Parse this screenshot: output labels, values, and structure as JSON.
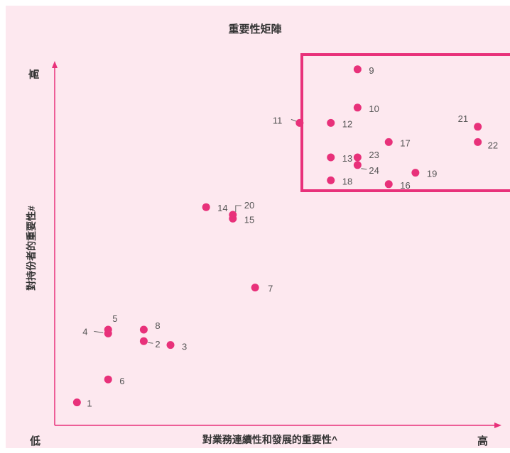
{
  "chart_data": {
    "type": "scatter",
    "title": "重要性矩陣",
    "xlabel": "對業務連續性和發展的重要性^",
    "ylabel": "對持份者的重要性#",
    "x_low_label": "低",
    "x_high_label": "高",
    "y_high_label": "高",
    "xlim": [
      0,
      100
    ],
    "ylim": [
      0,
      100
    ],
    "point_color": "#e8317a",
    "highlight_color": "#e8317a",
    "points": [
      {
        "label": "1",
        "x": 5,
        "y": 6
      },
      {
        "label": "2",
        "x": 20,
        "y": 22
      },
      {
        "label": "3",
        "x": 26,
        "y": 21
      },
      {
        "label": "4",
        "x": 12,
        "y": 24
      },
      {
        "label": "5",
        "x": 12,
        "y": 25
      },
      {
        "label": "6",
        "x": 12,
        "y": 12
      },
      {
        "label": "7",
        "x": 45,
        "y": 36
      },
      {
        "label": "8",
        "x": 20,
        "y": 25
      },
      {
        "label": "9",
        "x": 68,
        "y": 93
      },
      {
        "label": "10",
        "x": 68,
        "y": 83
      },
      {
        "label": "11",
        "x": 55,
        "y": 79
      },
      {
        "label": "12",
        "x": 62,
        "y": 79
      },
      {
        "label": "13",
        "x": 62,
        "y": 70
      },
      {
        "label": "14",
        "x": 34,
        "y": 57
      },
      {
        "label": "15",
        "x": 40,
        "y": 54
      },
      {
        "label": "16",
        "x": 75,
        "y": 63
      },
      {
        "label": "17",
        "x": 75,
        "y": 74
      },
      {
        "label": "18",
        "x": 62,
        "y": 64
      },
      {
        "label": "19",
        "x": 81,
        "y": 66
      },
      {
        "label": "20",
        "x": 40,
        "y": 55
      },
      {
        "label": "21",
        "x": 95,
        "y": 78
      },
      {
        "label": "22",
        "x": 95,
        "y": 74
      },
      {
        "label": "23",
        "x": 68,
        "y": 70
      },
      {
        "label": "24",
        "x": 68,
        "y": 68
      }
    ]
  }
}
